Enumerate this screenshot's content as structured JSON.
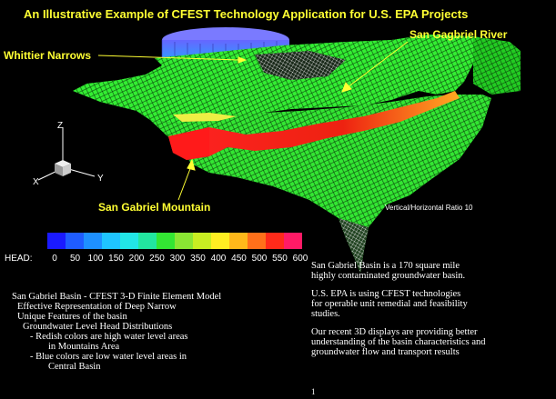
{
  "title": "An Illustrative Example of CFEST Technology Application for U.S. EPA Projects",
  "labels": {
    "whittier": "Whittier Narrows",
    "river": "San Gagbriel River",
    "mountain": "San Gabriel Mountain",
    "ratio": "Vertical/Horizontal Ratio  10"
  },
  "axes": {
    "z": "Z",
    "x": "X",
    "y": "Y"
  },
  "legend": {
    "label": "HEAD:",
    "ticks": [
      "0",
      "50",
      "100",
      "150",
      "200",
      "250",
      "300",
      "350",
      "400",
      "450",
      "500",
      "550",
      "600"
    ],
    "colors": [
      "#1a1aff",
      "#1f5cff",
      "#1e90ff",
      "#1fc4ff",
      "#22e6e6",
      "#22e6a0",
      "#33e633",
      "#8ae633",
      "#c8ee22",
      "#ffee22",
      "#ffb81a",
      "#ff701a",
      "#ff2a1a",
      "#ff1a66"
    ]
  },
  "left_notes": [
    "San Gabriel Basin - CFEST 3-D Finite Element Model",
    "Effective Representation of  Deep Narrow",
    "Unique Features of the basin",
    "Groundwater Level Head Distributions",
    "- Redish colors are high water level areas",
    "in Mountains Area",
    "- Blue colors are low water level areas in",
    "Central Basin"
  ],
  "right_notes": [
    "San Gabriel Basin is a 170 square mile\nhighly contaminated groundwater basin.",
    "U.S. EPA is using CFEST technologies\nfor operable unit remedial and feasibility\nstudies.",
    "Our recent 3D displays are providing better\nunderstanding of the basin characteristics and\ngroundwater flow and transport results"
  ],
  "page_number": "1"
}
